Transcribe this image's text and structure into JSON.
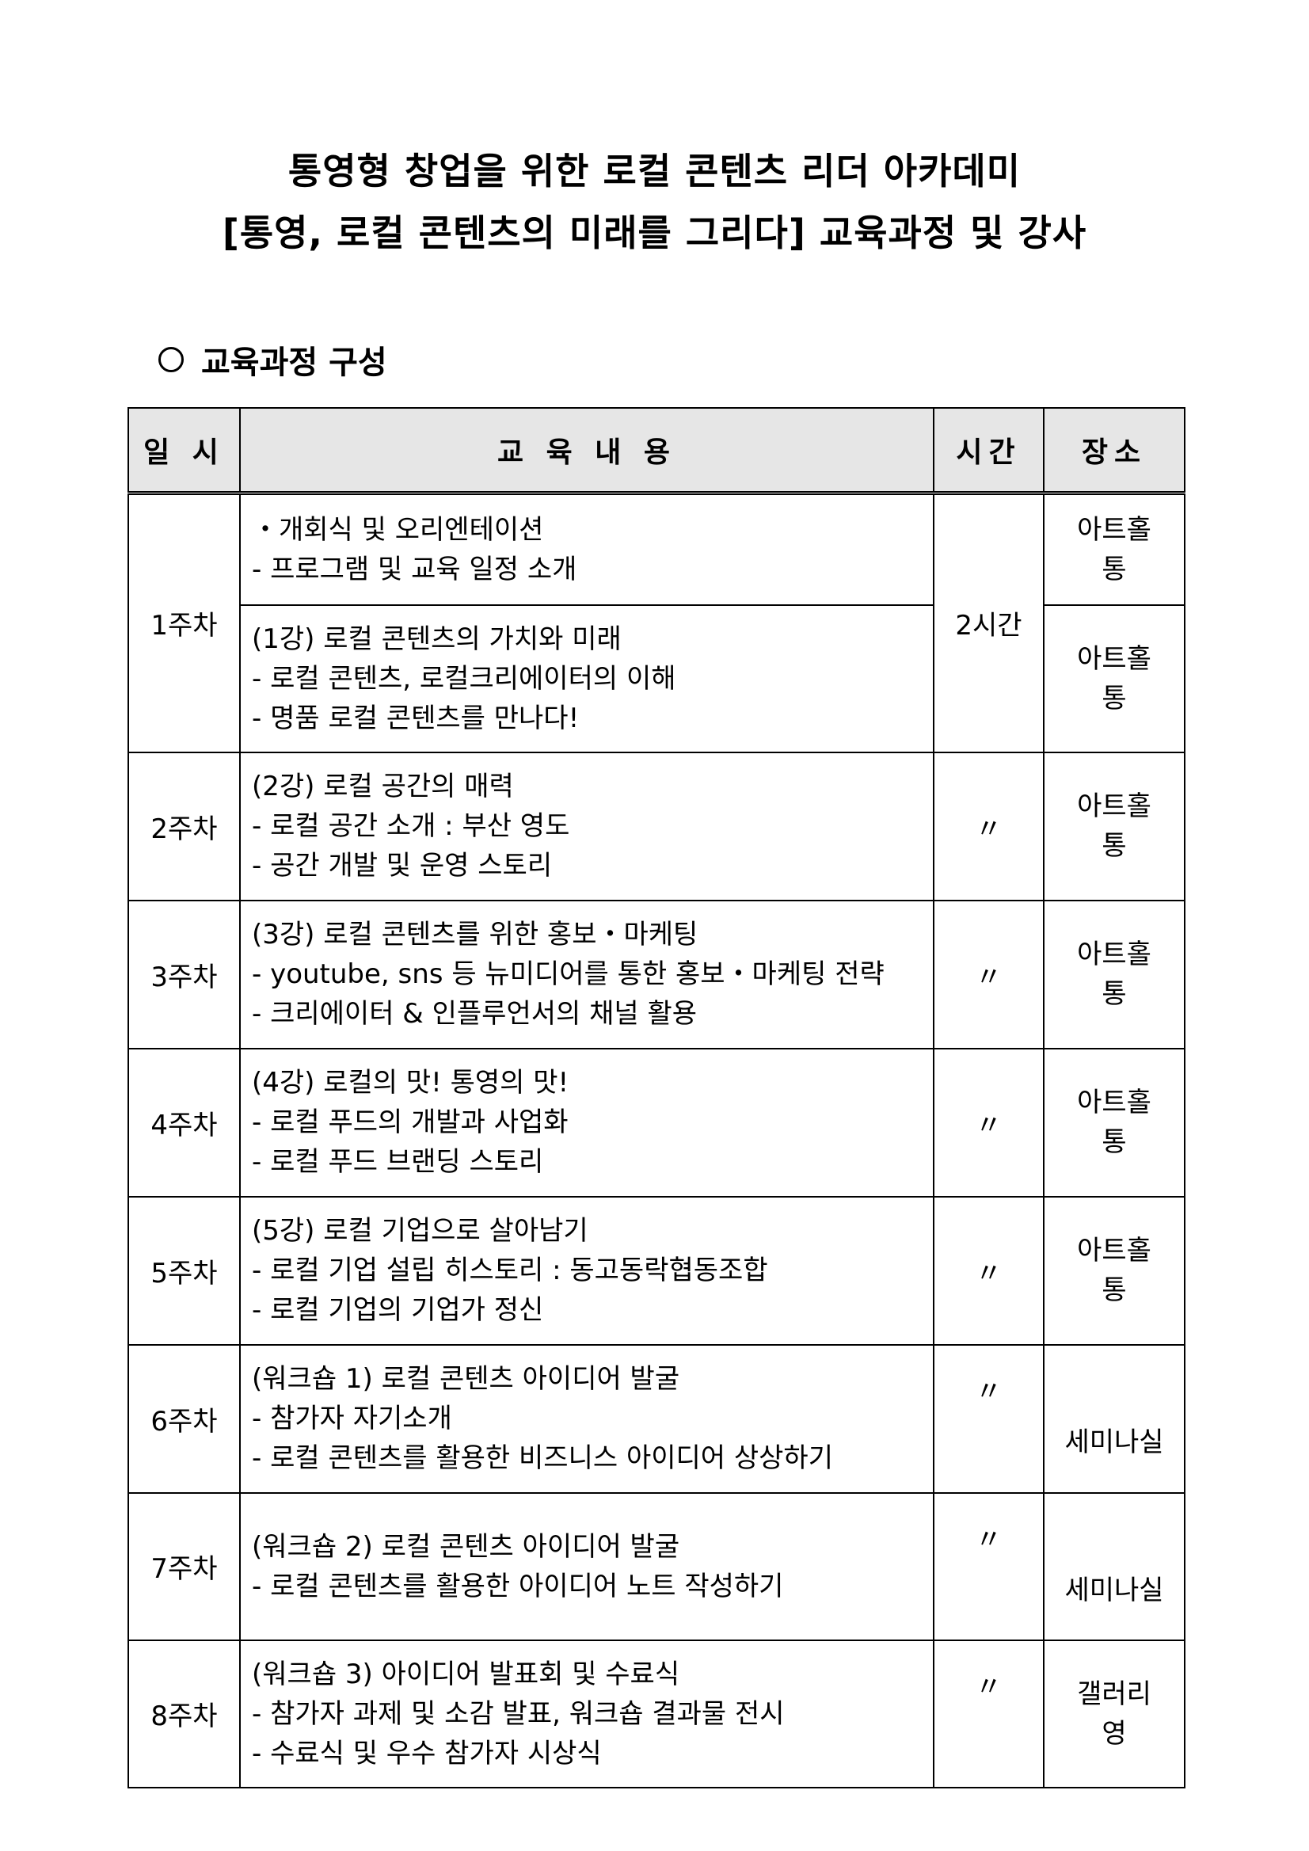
{
  "title_line1": "통영형 창업을 위한 로컬 콘텐츠 리더 아카데미",
  "title_line2": "[통영, 로컬 콘텐츠의 미래를 그리다] 교육과정 및 강사",
  "section_heading": "교육과정 구성",
  "table": {
    "headers": [
      "일 시",
      "교 육 내 용",
      "시간",
      "장소"
    ],
    "rows": [
      {
        "week": "1주차",
        "content": [
          "・개회식 및 오리엔테이션",
          "- 프로그램 및 교육 일정 소개"
        ],
        "time": "2시간",
        "place": [
          "아트홀",
          "통"
        ]
      },
      {
        "week": "",
        "content": [
          "(1강) 로컬 콘텐츠의 가치와 미래",
          "- 로컬 콘텐츠, 로컬크리에이터의 이해",
          "- 명품 로컬 콘텐츠를 만나다!"
        ],
        "time": "",
        "place": [
          "아트홀",
          "통"
        ]
      },
      {
        "week": "2주차",
        "content": [
          "(2강) 로컬 공간의 매력",
          "- 로컬 공간 소개 : 부산 영도",
          "- 공간 개발 및 운영 스토리"
        ],
        "time": "〃",
        "place": [
          "아트홀",
          "통"
        ]
      },
      {
        "week": "3주차",
        "content": [
          "(3강) 로컬 콘텐츠를 위한 홍보・마케팅",
          "- youtube, sns 등 뉴미디어를 통한 홍보・마케팅 전략",
          "- 크리에이터 & 인플루언서의 채널 활용"
        ],
        "time": "〃",
        "place": [
          "아트홀",
          "통"
        ]
      },
      {
        "week": "4주차",
        "content": [
          "(4강) 로컬의 맛! 통영의 맛!",
          "- 로컬 푸드의 개발과 사업화",
          "- 로컬 푸드 브랜딩 스토리"
        ],
        "time": "〃",
        "place": [
          "아트홀",
          "통"
        ]
      },
      {
        "week": "5주차",
        "content": [
          "(5강) 로컬 기업으로 살아남기",
          "- 로컬 기업 설립 히스토리 : 동고동락협동조합",
          "- 로컬 기업의 기업가 정신"
        ],
        "time": "〃",
        "place": [
          "아트홀",
          "통"
        ]
      },
      {
        "week": "6주차",
        "content": [
          "(워크숍 1) 로컬 콘텐츠 아이디어 발굴",
          "- 참가자 자기소개",
          "- 로컬 콘텐츠를 활용한 비즈니스 아이디어 상상하기"
        ],
        "time": "〃",
        "place": [
          "세미나실"
        ]
      },
      {
        "week": "7주차",
        "content": [
          "(워크숍 2) 로컬 콘텐츠 아이디어 발굴",
          "- 로컬 콘텐츠를 활용한 아이디어 노트 작성하기"
        ],
        "time": "〃",
        "place": [
          "세미나실"
        ]
      },
      {
        "week": "8주차",
        "content": [
          "(워크숍 3) 아이디어 발표회 및 수료식",
          "- 참가자 과제 및 소감 발표, 워크숍 결과물 전시",
          "- 수료식 및 우수 참가자 시상식"
        ],
        "time": "〃",
        "place": [
          "갤러리",
          "영"
        ]
      }
    ]
  }
}
